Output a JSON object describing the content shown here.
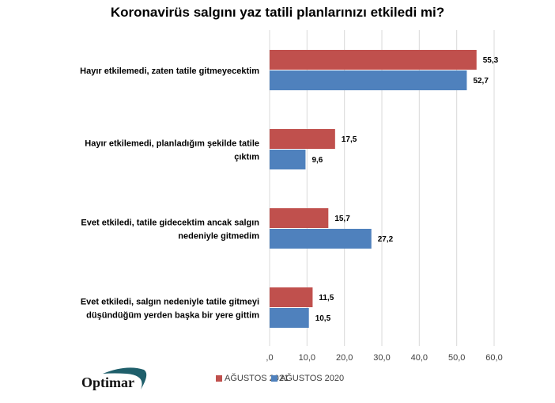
{
  "chart_data": {
    "type": "bar",
    "orientation": "horizontal",
    "title": "Koronavirüs salgını yaz tatili planlarınızı etkiledi mi?",
    "categories": [
      [
        "Hayır etkilemedi, zaten tatile gitmeyecektim"
      ],
      [
        "Hayır etkilemedi, planladığım şekilde tatile",
        "çıktım"
      ],
      [
        "Evet etkiledi, tatile gidecektim ancak salgın",
        "nedeniyle gitmedim"
      ],
      [
        "Evet etkiledi, salgın nedeniyle tatile gitmeyi",
        "düşündüğüm yerden başka bir yere gittim"
      ]
    ],
    "series": [
      {
        "name": "AĞUSTOS 2021",
        "color": "#C0504D",
        "values": [
          55.3,
          17.5,
          15.7,
          11.5
        ],
        "labels": [
          "55,3",
          "17,5",
          "15,7",
          "11,5"
        ]
      },
      {
        "name": "AĞUSTOS 2020",
        "color": "#4F81BD",
        "values": [
          52.7,
          9.6,
          27.2,
          10.5
        ],
        "labels": [
          "52,7",
          "9,6",
          "27,2",
          "10,5"
        ]
      }
    ],
    "xlim": [
      0,
      60
    ],
    "xticks": [
      ",0",
      "10,0",
      "20,0",
      "30,0",
      "40,0",
      "50,0",
      "60,0"
    ],
    "grid": true,
    "legend": "bottom"
  },
  "logo": "Optimar"
}
